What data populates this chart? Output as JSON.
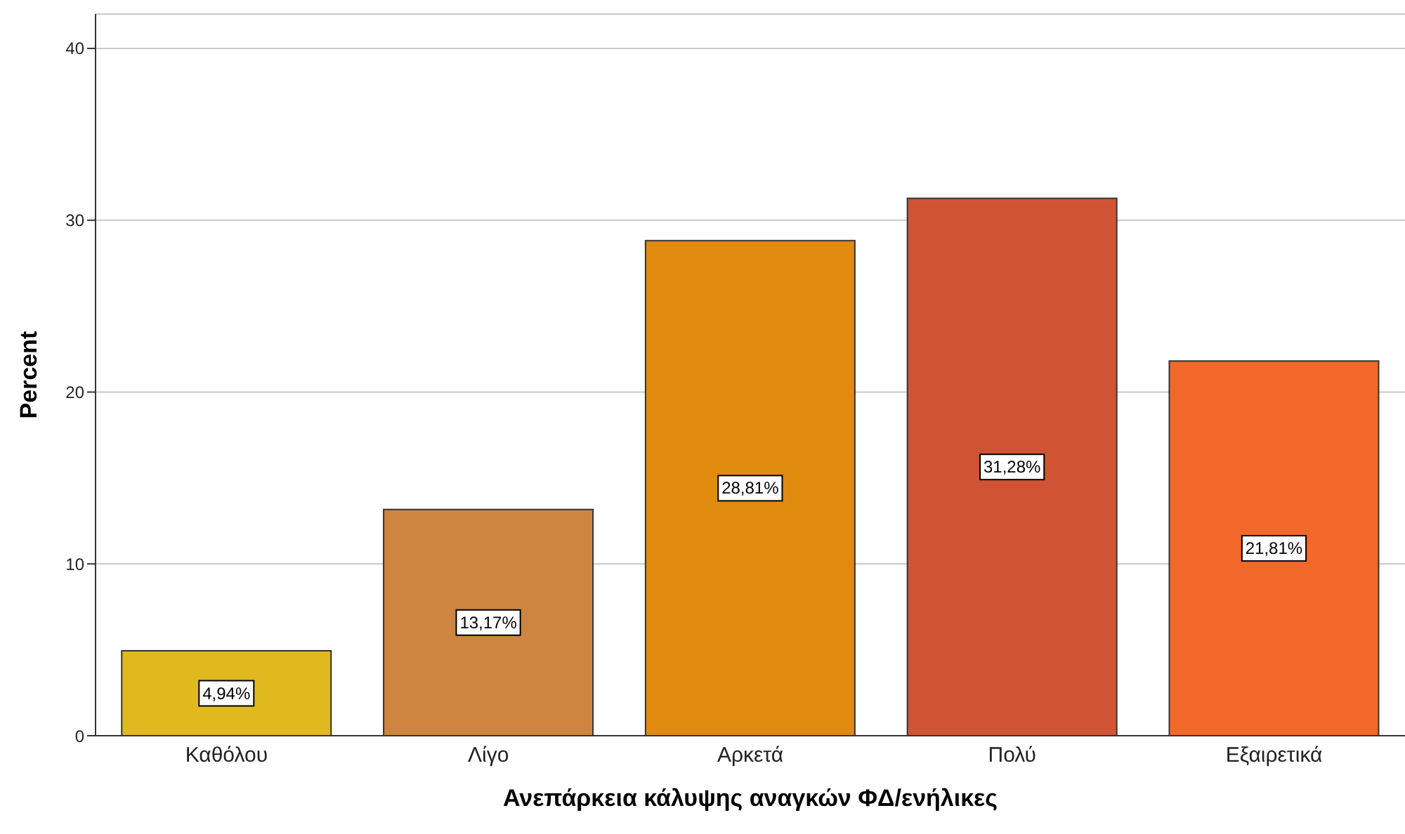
{
  "chart_data": {
    "type": "bar",
    "xlabel": "Ανεπάρκεια κάλυψης αναγκών ΦΔ/ενήλικες",
    "ylabel": "Percent",
    "categories": [
      "Καθόλου",
      "Λίγο",
      "Αρκετά",
      "Πολύ",
      "Εξαιρετικά"
    ],
    "values": [
      4.94,
      13.17,
      28.81,
      31.28,
      21.81
    ],
    "colors": [
      "#e0b91e",
      "#cd853f",
      "#e08a0e",
      "#d05434",
      "#f2682a"
    ],
    "value_labels": [
      "4,94%",
      "13,17%",
      "28,81%",
      "31,28%",
      "21,81%"
    ],
    "ylim": [
      0,
      42
    ],
    "yticks": [
      0,
      10,
      20,
      30,
      40
    ],
    "grid": "y",
    "legend": false
  }
}
